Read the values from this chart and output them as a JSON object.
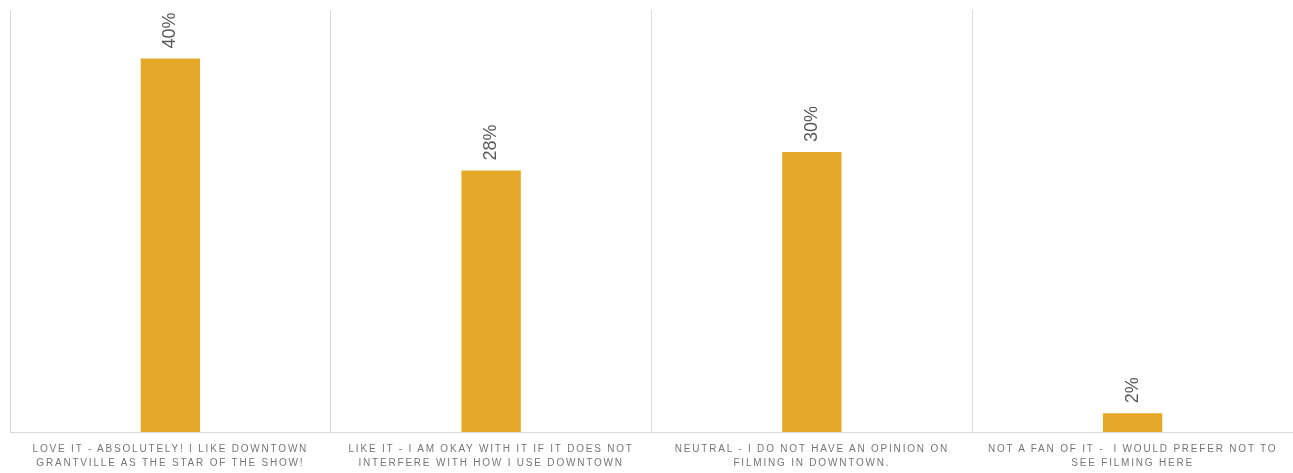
{
  "chart_data": {
    "type": "bar",
    "categories": [
      "LOVE IT - ABSOLUTELY! I LIKE DOWNTOWN GRANTVILLE AS THE STAR OF THE SHOW!",
      "LIKE IT - I AM OKAY WITH IT IF IT DOES NOT INTERFERE WITH HOW I USE DOWNTOWN",
      "NEUTRAL - I DO NOT HAVE AN OPINION ON FILMING IN DOWNTOWN.",
      "NOT A FAN OF IT -  I WOULD PREFER NOT TO SEE FILMING HERE"
    ],
    "values": [
      40,
      28,
      30,
      2
    ],
    "value_labels": [
      "40%",
      "28%",
      "30%",
      "2%"
    ],
    "color": "#e6a828",
    "grid": "x"
  }
}
